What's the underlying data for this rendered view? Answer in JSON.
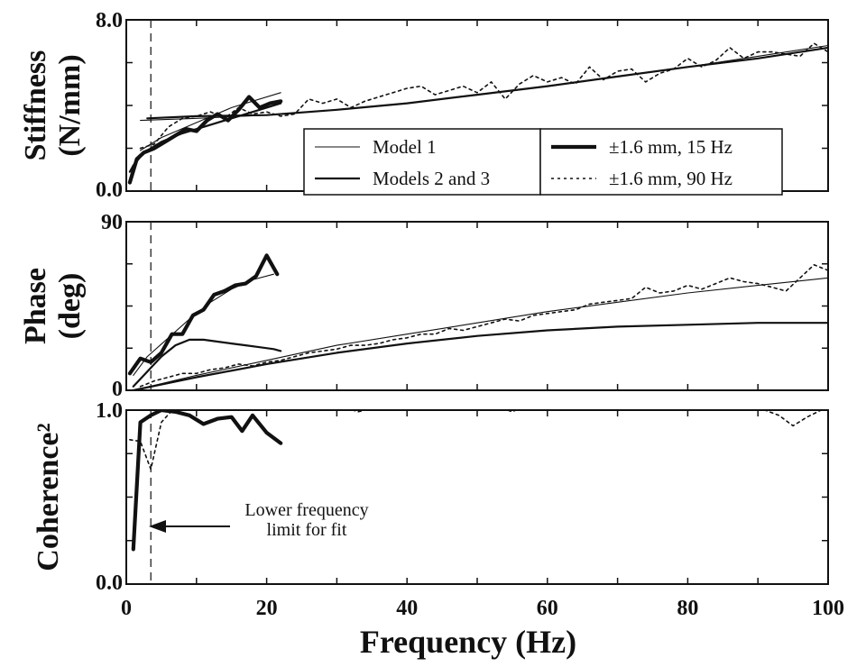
{
  "chart_data": {
    "type": "line",
    "xlabel": "Frequency (Hz)",
    "xlim": [
      0,
      100
    ],
    "x_ticks": [
      "0",
      "20",
      "40",
      "60",
      "80",
      "100"
    ],
    "panels": [
      {
        "ylabel_lines": [
          "Stiffness",
          "(N/mm)"
        ],
        "ylim": [
          0,
          8
        ],
        "y_tick_labels": [
          "8.0",
          "0.0"
        ],
        "series": [
          {
            "key": "model1",
            "name": "Model 1",
            "style": "thin",
            "x": [
              2,
              5,
              10,
              15,
              22
            ],
            "y": [
              1.9,
              2.5,
              3.2,
              3.9,
              4.6
            ]
          },
          {
            "key": "model1_hf",
            "name": "Model 1",
            "style": "thin",
            "x": [
              2,
              10,
              20,
              30,
              40,
              50,
              60,
              70,
              80,
              90,
              100
            ],
            "y": [
              3.3,
              3.4,
              3.55,
              3.8,
              4.1,
              4.5,
              4.9,
              5.35,
              5.8,
              6.3,
              6.8
            ]
          },
          {
            "key": "models23",
            "name": "Models 2 and 3",
            "style": "medium",
            "x": [
              0.5,
              1,
              2,
              3,
              5,
              8,
              12,
              16,
              19,
              22
            ],
            "y": [
              0.9,
              1.2,
              1.6,
              1.9,
              2.3,
              2.7,
              3.1,
              3.5,
              3.8,
              4.1
            ]
          },
          {
            "key": "models23_hf",
            "name": "Models 2 and 3",
            "style": "medium",
            "x": [
              3,
              10,
              20,
              30,
              40,
              50,
              60,
              70,
              80,
              90,
              100
            ],
            "y": [
              3.4,
              3.5,
              3.55,
              3.8,
              4.1,
              4.5,
              4.9,
              5.35,
              5.8,
              6.2,
              6.7
            ]
          },
          {
            "key": "exp15",
            "name": "±1.6 mm, 15 Hz",
            "style": "thick",
            "x": [
              0.5,
              1.5,
              2.5,
              4,
              5.5,
              7,
              8.5,
              10,
              11.5,
              13,
              14.5,
              16,
              17.5,
              19,
              20.5,
              22
            ],
            "y": [
              0.4,
              1.5,
              1.8,
              2.0,
              2.3,
              2.6,
              2.9,
              2.8,
              3.3,
              3.6,
              3.3,
              3.8,
              4.4,
              3.9,
              4.1,
              4.2
            ]
          },
          {
            "key": "exp90",
            "name": "±1.6 mm, 90 Hz",
            "style": "dotted",
            "x": [
              2,
              4,
              6,
              8,
              10,
              12,
              14,
              16,
              18,
              20,
              22,
              24,
              26,
              28,
              30,
              32,
              34,
              36,
              38,
              40,
              42,
              44,
              46,
              48,
              50,
              52,
              54,
              56,
              58,
              60,
              62,
              64,
              66,
              68,
              70,
              72,
              74,
              76,
              78,
              80,
              82,
              84,
              86,
              88,
              90,
              92,
              94,
              96,
              98,
              100
            ],
            "y": [
              2.0,
              2.2,
              3.0,
              3.4,
              3.5,
              3.7,
              3.4,
              3.9,
              3.6,
              3.7,
              3.5,
              3.6,
              4.3,
              4.1,
              4.3,
              3.9,
              4.2,
              4.4,
              4.6,
              4.8,
              4.9,
              4.5,
              4.7,
              4.9,
              4.6,
              5.1,
              4.3,
              5.0,
              5.4,
              5.1,
              5.3,
              5.0,
              5.8,
              5.2,
              5.6,
              5.7,
              5.1,
              5.5,
              5.7,
              6.2,
              5.8,
              6.1,
              6.7,
              6.2,
              6.5,
              6.5,
              6.4,
              6.3,
              6.9,
              6.5
            ]
          }
        ],
        "legend": {
          "position": "center-bottom",
          "entries": [
            {
              "label": "Model 1",
              "style": "thin"
            },
            {
              "label": "Models 2 and 3",
              "style": "medium"
            },
            {
              "label": "±1.6 mm, 15 Hz",
              "style": "thick"
            },
            {
              "label": "±1.6 mm, 90 Hz",
              "style": "dotted"
            }
          ]
        }
      },
      {
        "ylabel_lines": [
          "Phase",
          "(deg)"
        ],
        "ylim": [
          0,
          90
        ],
        "y_tick_labels": [
          "90",
          "0"
        ],
        "series": [
          {
            "key": "model1_lf",
            "name": "Model 1",
            "style": "thin",
            "x": [
              1,
              3,
              6,
              9,
              12,
              15,
              18,
              21
            ],
            "y": [
              8,
              18,
              28,
              38,
              47,
              54,
              59,
              62
            ]
          },
          {
            "key": "model1_hf",
            "name": "Model 1",
            "style": "thin",
            "x": [
              1,
              10,
              20,
              30,
              40,
              50,
              60,
              70,
              80,
              90,
              100
            ],
            "y": [
              0,
              8,
              16,
              24,
              30,
              36,
              42,
              47,
              52,
              56,
              60
            ]
          },
          {
            "key": "models23_lf",
            "name": "Models 2 and 3",
            "style": "medium",
            "x": [
              1,
              3,
              5,
              7,
              9,
              11,
              13,
              15,
              17,
              19,
              21,
              22
            ],
            "y": [
              2,
              10,
              18,
              24,
              27,
              27,
              26,
              25,
              24,
              23,
              22,
              21
            ]
          },
          {
            "key": "models23_hf",
            "name": "Models 2 and 3",
            "style": "medium",
            "x": [
              1,
              10,
              20,
              30,
              40,
              50,
              60,
              70,
              80,
              90,
              100
            ],
            "y": [
              0,
              7,
              14,
              20,
              25,
              29,
              32,
              34,
              35,
              36,
              36
            ]
          },
          {
            "key": "exp15",
            "name": "±1.6 mm, 15 Hz",
            "style": "thick",
            "x": [
              0.5,
              2,
              3.5,
              5,
              6.5,
              8,
              9.5,
              11,
              12.5,
              14,
              15.5,
              17,
              18.5,
              20,
              21.5
            ],
            "y": [
              9,
              17,
              15,
              20,
              30,
              30,
              40,
              43,
              51,
              53,
              56,
              57,
              61,
              72,
              62
            ]
          },
          {
            "key": "exp90",
            "name": "±1.6 mm, 90 Hz",
            "style": "dotted",
            "x": [
              2,
              4,
              6,
              8,
              10,
              12,
              14,
              16,
              18,
              20,
              22,
              24,
              26,
              28,
              30,
              32,
              34,
              36,
              38,
              40,
              42,
              44,
              46,
              48,
              50,
              52,
              54,
              56,
              58,
              60,
              62,
              64,
              66,
              68,
              70,
              72,
              74,
              76,
              78,
              80,
              82,
              84,
              86,
              88,
              90,
              92,
              94,
              96,
              98,
              100
            ],
            "y": [
              2,
              5,
              7,
              9,
              9,
              11,
              12,
              14,
              13,
              15,
              16,
              18,
              20,
              21,
              22,
              24,
              24,
              25,
              27,
              28,
              30,
              30,
              33,
              32,
              34,
              36,
              38,
              37,
              40,
              41,
              42,
              43,
              46,
              47,
              48,
              49,
              55,
              52,
              53,
              56,
              54,
              57,
              60,
              58,
              57,
              55,
              53,
              60,
              67,
              64
            ]
          }
        ]
      },
      {
        "ylabel_lines": [
          "Coherence²"
        ],
        "ylim": [
          0,
          1.0
        ],
        "y_tick_labels": [
          "1.0",
          "0.0"
        ],
        "series": [
          {
            "key": "exp15",
            "name": "±1.6 mm, 15 Hz",
            "style": "thick",
            "x": [
              1,
              2,
              3.5,
              5,
              7,
              9,
              11,
              13,
              15,
              16.5,
              18,
              20,
              22
            ],
            "y": [
              0.2,
              0.93,
              0.97,
              1.0,
              0.99,
              0.97,
              0.92,
              0.95,
              0.96,
              0.88,
              0.97,
              0.87,
              0.81
            ]
          },
          {
            "key": "exp90",
            "name": "±1.6 mm, 90 Hz",
            "style": "dotted",
            "x": [
              0.5,
              2,
              3.5,
              5,
              7,
              9,
              11,
              13,
              15,
              17,
              19,
              21,
              23,
              25,
              27,
              29,
              31,
              33,
              35,
              37,
              39,
              41,
              43,
              45,
              47,
              49,
              51,
              53,
              55,
              57,
              59,
              61,
              63,
              65,
              67,
              69,
              71,
              73,
              75,
              77,
              79,
              81,
              83,
              85,
              87,
              89,
              91,
              93,
              95,
              97,
              99
            ],
            "y": [
              0.83,
              0.82,
              0.66,
              0.93,
              1.02,
              1.03,
              1.02,
              1.04,
              1.02,
              1.0,
              1.02,
              1.04,
              1.03,
              1.01,
              1.02,
              1.03,
              1.02,
              0.99,
              1.01,
              1.03,
              1.0,
              1.04,
              1.02,
              1.03,
              1.01,
              1.04,
              1.0,
              1.02,
              0.99,
              1.03,
              1.02,
              1.04,
              1.01,
              1.02,
              1.0,
              1.03,
              1.01,
              1.02,
              1.0,
              1.04,
              1.02,
              1.01,
              1.03,
              1.04,
              1.02,
              1.01,
              1.0,
              0.97,
              0.91,
              0.96,
              1.0
            ]
          }
        ],
        "annotation": {
          "lines": [
            "Lower frequency",
            "limit for fit"
          ],
          "x": 3.5
        }
      }
    ]
  }
}
